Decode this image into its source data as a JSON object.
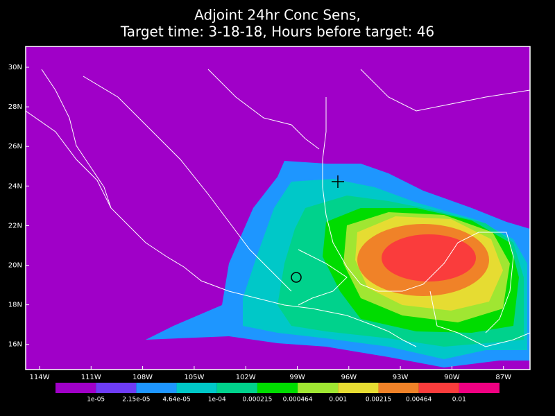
{
  "title": [
    "Adjoint 24hr Conc Sens,",
    "Target time: 3-18-18, Hours before target: 46"
  ],
  "lat_labels": [
    "30N",
    "28N",
    "26N",
    "24N",
    "22N",
    "20N",
    "18N",
    "16N"
  ],
  "lon_labels": [
    "114W",
    "111W",
    "108W",
    "105W",
    "102W",
    "99W",
    "96W",
    "93W",
    "90W",
    "87W"
  ],
  "colorbar": {
    "labels": [
      "1e-05",
      "2.15e-05",
      "4.64e-05",
      "1e-04",
      "0.000215",
      "0.000464",
      "0.001",
      "0.00215",
      "0.00464",
      "0.01"
    ],
    "colors": [
      "#a000c8",
      "#6e3cf5",
      "#1e96ff",
      "#00c8c8",
      "#00d28c",
      "#00dc00",
      "#a0e632",
      "#e6dc32",
      "#f08228",
      "#fa3c3c",
      "#f00082"
    ]
  }
}
